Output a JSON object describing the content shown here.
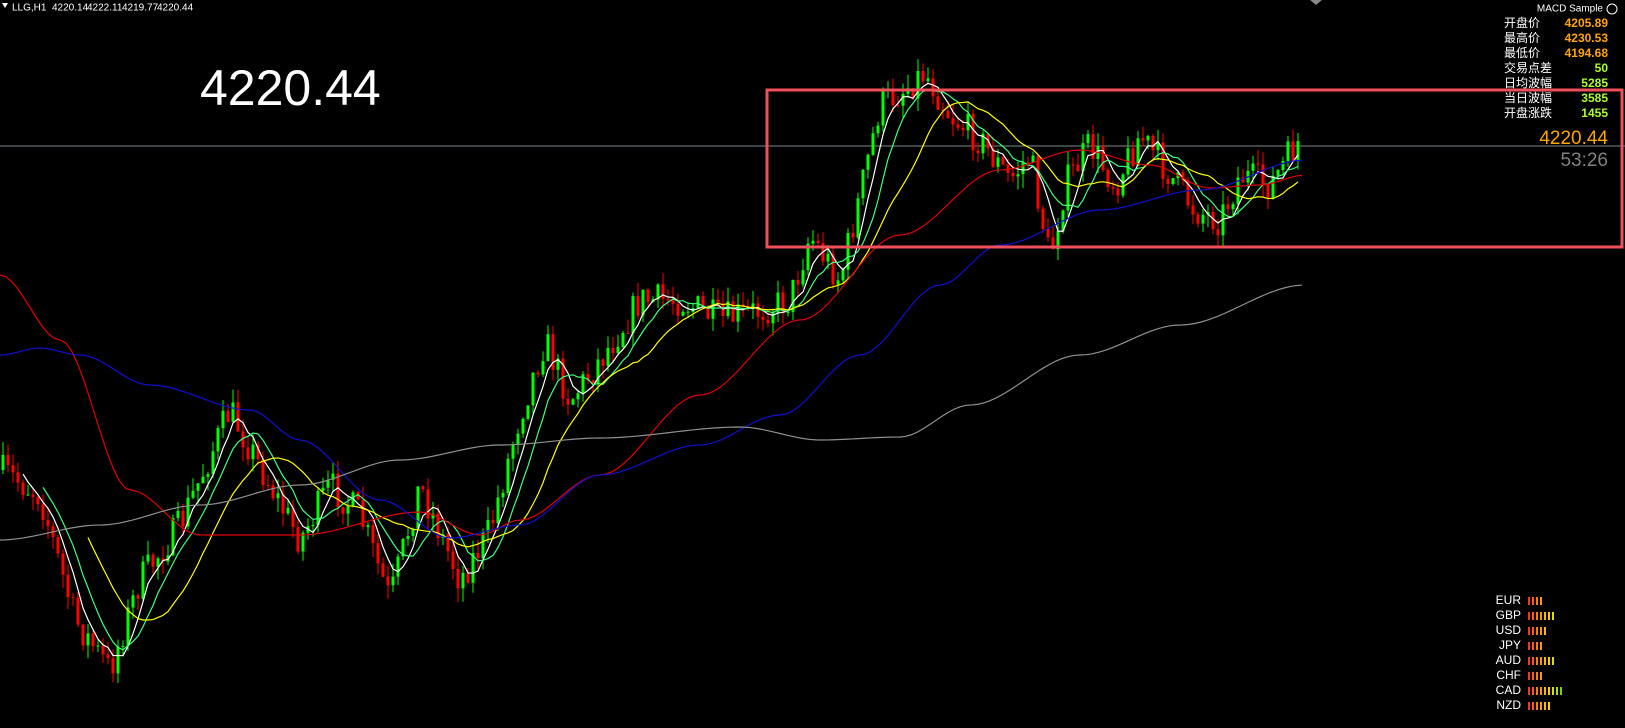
{
  "header": {
    "symbol": "LLG,H1",
    "open": 4220.14,
    "high": 4222.11,
    "low": 4219.77,
    "close": 4220.44,
    "expert": "MACD Sample"
  },
  "big_price": "4220.44",
  "info_panel": [
    {
      "label": "开盘价",
      "value": 4205.89
    },
    {
      "label": "最高价",
      "value": 4230.53
    },
    {
      "label": "最低价",
      "value": 4194.68
    },
    {
      "label": "交易点差",
      "value": 50
    },
    {
      "label": "日均波幅",
      "value": 5285
    },
    {
      "label": "当日波幅",
      "value": 3585
    },
    {
      "label": "开盘涨跌",
      "value": 1455
    }
  ],
  "price_label": "4220.44",
  "timer": "53:26",
  "currency_strength": [
    {
      "name": "EUR",
      "bars": 4
    },
    {
      "name": "GBP",
      "bars": 7
    },
    {
      "name": "USD",
      "bars": 5
    },
    {
      "name": "JPY",
      "bars": 4
    },
    {
      "name": "AUD",
      "bars": 7
    },
    {
      "name": "CHF",
      "bars": 4
    },
    {
      "name": "CAD",
      "bars": 9
    },
    {
      "name": "NZD",
      "bars": 6
    }
  ]
}
